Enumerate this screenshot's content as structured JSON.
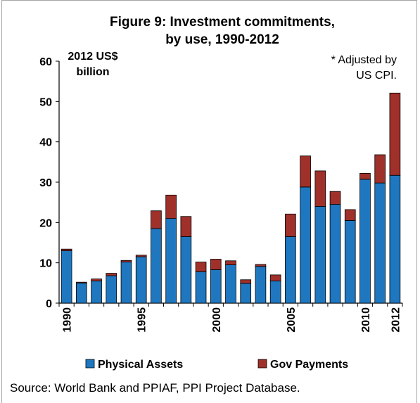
{
  "chart_data": {
    "type": "bar",
    "stacked": true,
    "title_lines": [
      "Figure 9: Investment commitments,",
      "by use, 1990-2012"
    ],
    "unit_lines": [
      "2012 US$",
      "billion"
    ],
    "note_lines": [
      "* Adjusted by",
      "US CPI."
    ],
    "categories": [
      "1990",
      "1991",
      "1992",
      "1993",
      "1994",
      "1995",
      "1996",
      "1997",
      "1998",
      "1999",
      "2000",
      "2001",
      "2002",
      "2003",
      "2004",
      "2005",
      "2006",
      "2007",
      "2008",
      "2009",
      "2010",
      "2011",
      "2012"
    ],
    "x_tick_labels": [
      "1990",
      "1995",
      "2000",
      "2005",
      "2010",
      "2012"
    ],
    "ylim": [
      0,
      60
    ],
    "y_ticks": [
      "0",
      "10",
      "20",
      "30",
      "40",
      "50",
      "60"
    ],
    "series": [
      {
        "name": "Physical Assets",
        "color": "#1f77c0",
        "values": [
          13.0,
          5.0,
          5.5,
          6.8,
          10.2,
          11.5,
          18.5,
          21.0,
          16.5,
          7.8,
          8.3,
          9.5,
          4.9,
          9.1,
          5.5,
          16.5,
          28.8,
          24.0,
          24.5,
          20.5,
          30.7,
          29.8,
          31.7
        ]
      },
      {
        "name": "Gov Payments",
        "color": "#a0302a",
        "values": [
          0.4,
          0.2,
          0.5,
          0.6,
          0.4,
          0.4,
          4.4,
          5.8,
          5.0,
          2.4,
          2.6,
          1.0,
          0.9,
          0.5,
          1.5,
          5.6,
          7.7,
          8.8,
          3.2,
          2.7,
          1.5,
          7.0,
          20.4
        ]
      }
    ],
    "legend_position": "bottom",
    "grid": false
  },
  "source_text": "Source:  World Bank and PPIAF, PPI Project Database."
}
